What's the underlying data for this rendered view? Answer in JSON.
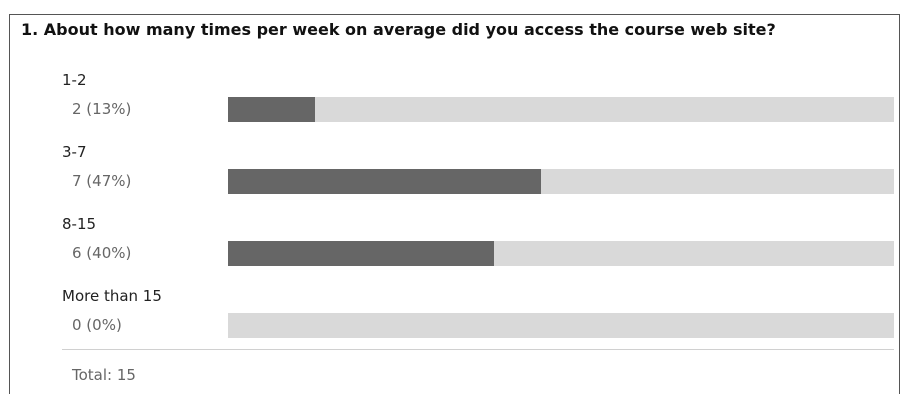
{
  "question": {
    "title": "1. About how many times per week on average did you access the course web site?"
  },
  "chart_data": {
    "type": "bar",
    "orientation": "horizontal",
    "categories": [
      "1-2",
      "3-7",
      "8-15",
      "More than 15"
    ],
    "values": [
      2,
      7,
      6,
      0
    ],
    "percent_labels": [
      "2 (13%)",
      "7 (47%)",
      "6 (40%)",
      "0 (0%)"
    ],
    "percents": [
      13,
      47,
      40,
      0
    ],
    "xlim": [
      0,
      100
    ],
    "grid": false,
    "legend": "none",
    "colors": {
      "bar_fill": "#666666",
      "bar_track": "#d9d9d9"
    }
  },
  "footer": {
    "total_label": "Total: 15"
  }
}
